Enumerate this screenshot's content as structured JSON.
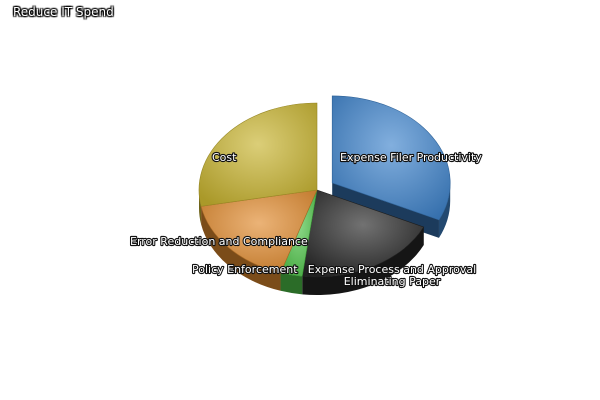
{
  "chart_data": {
    "type": "pie",
    "title": "Reduce IT Spend",
    "categories": [
      "Expense Filer Productivity",
      "Expense Process and Approval Eliminating Paper",
      "Policy Enforcement",
      "Error Reduction and Compliance",
      "Cost"
    ],
    "values": [
      32,
      20,
      3,
      17,
      28
    ],
    "colors": [
      "#3f84cc",
      "#262626",
      "#4fc449",
      "#e08a2e",
      "#c8b430"
    ],
    "exploded": "Expense Filer Productivity",
    "style": "3d",
    "legend": "none"
  }
}
